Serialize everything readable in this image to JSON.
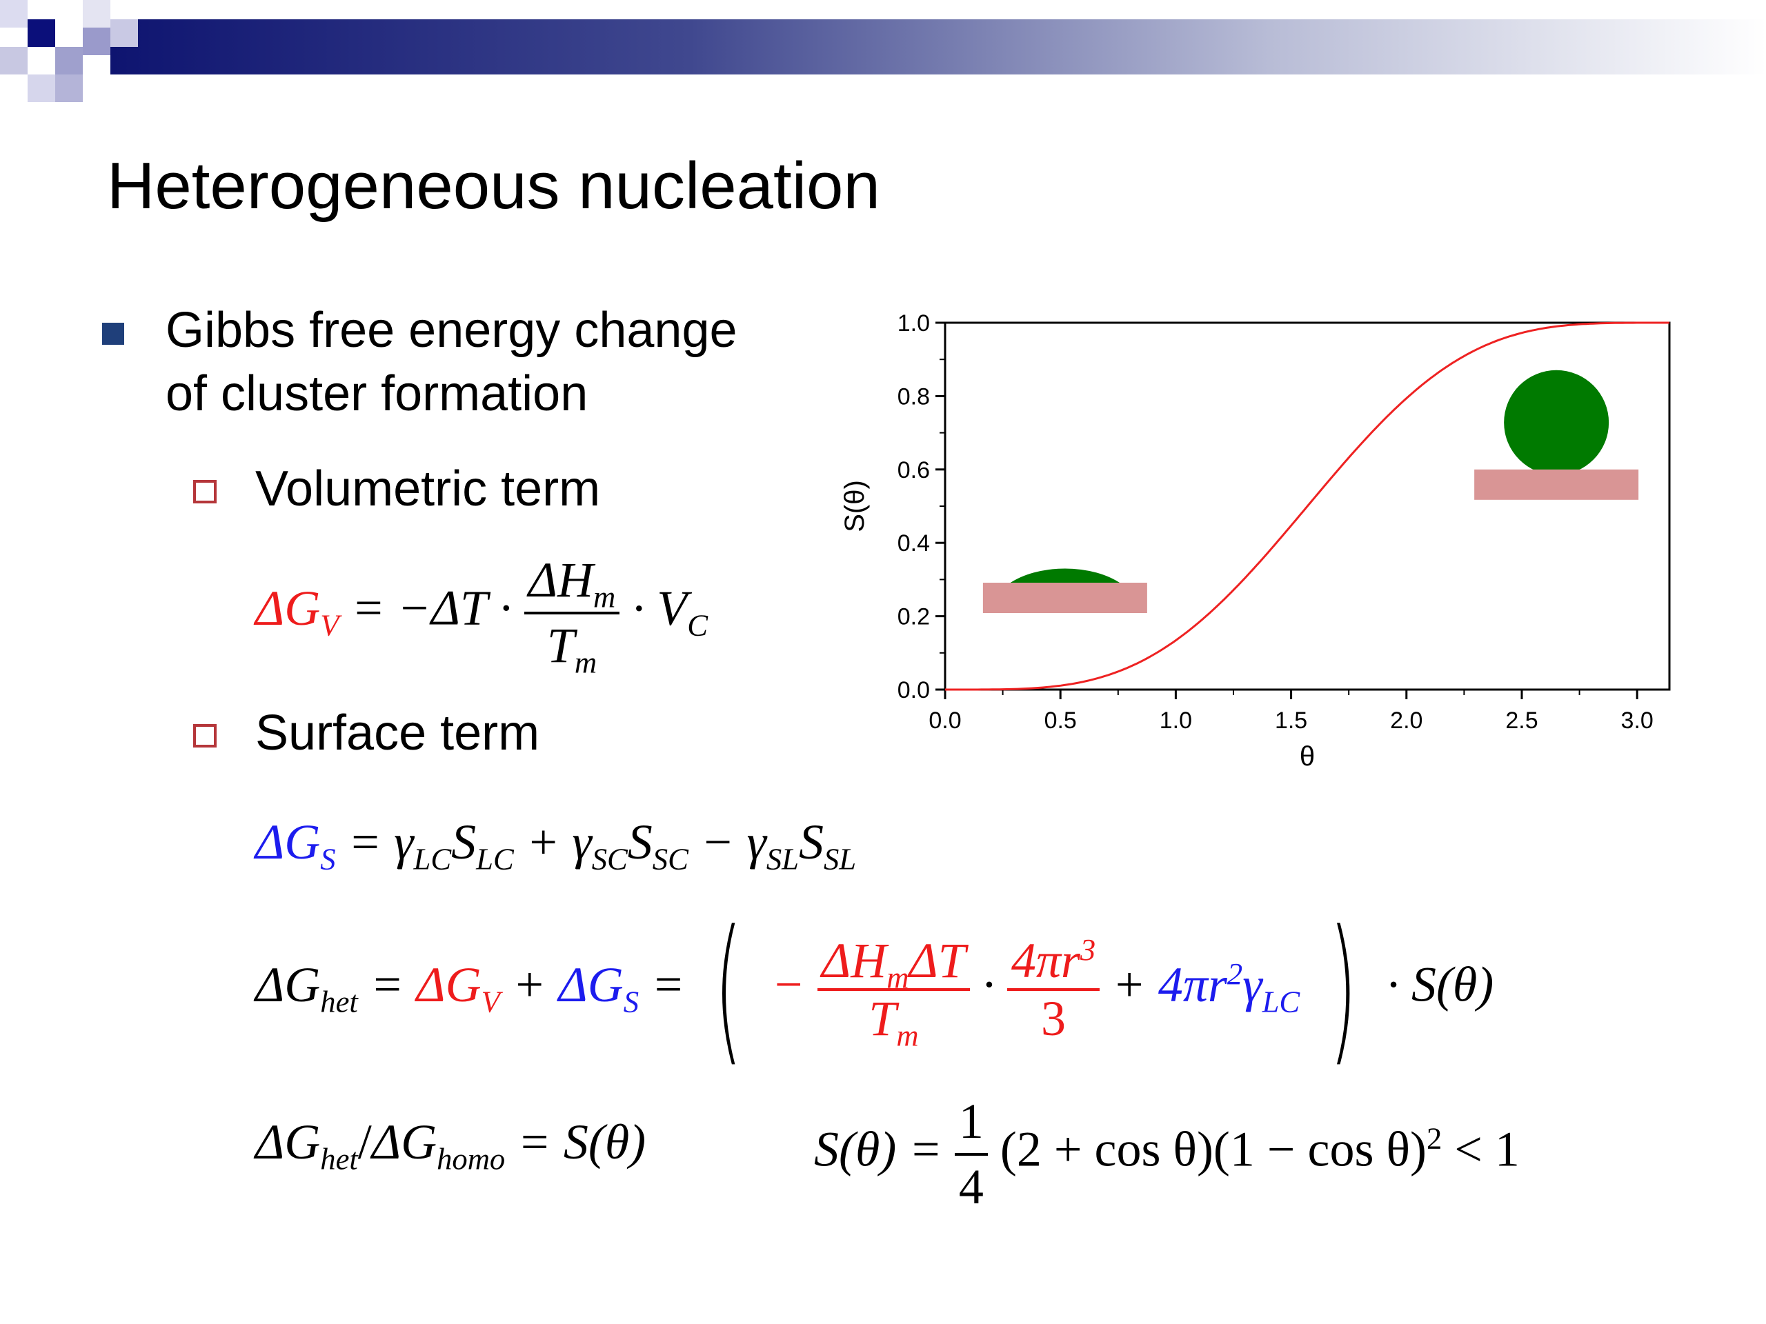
{
  "slide": {
    "title": "Heterogeneous nucleation",
    "bullet1": {
      "line1": "Gibbs free energy change",
      "line2": "of cluster formation"
    },
    "sub1": "Volumetric term",
    "sub2": "Surface term"
  },
  "equations": {
    "vol": {
      "lhs": "ΔG",
      "lhs_sub": "V",
      "eq": "= −ΔT ·",
      "num": "ΔH",
      "num_sub": "m",
      "den": "T",
      "den_sub": "m",
      "tail": "· V",
      "tail_sub": "C"
    },
    "surf": {
      "lhs": "ΔG",
      "lhs_sub": "S",
      "rhs_a": "= γ",
      "rhs_a_sub": "LC",
      "rhs_b": "S",
      "rhs_b_sub": "LC",
      "rhs_c": "+ γ",
      "rhs_c_sub": "SC",
      "rhs_d": "S",
      "rhs_d_sub": "SC",
      "rhs_e": "− γ",
      "rhs_e_sub": "SL",
      "rhs_f": "S",
      "rhs_f_sub": "SL"
    },
    "het": {
      "lhs": "ΔG",
      "lhs_sub": "het",
      "eq1": "=",
      "gv": "ΔG",
      "gv_sub": "V",
      "plus": "+",
      "gs": "ΔG",
      "gs_sub": "S",
      "eq2": "=",
      "lparen": "(",
      "minus": "−",
      "f1_num_a": "ΔH",
      "f1_num_sub": "m",
      "f1_num_b": "ΔT",
      "f1_den": "T",
      "f1_den_sub": "m",
      "dot": "·",
      "f2_num": "4πr",
      "f2_num_sup": "3",
      "f2_den": "3",
      "surf_plus": "+",
      "surf_term": "4πr",
      "surf_sup": "2",
      "surf_gamma": "γ",
      "surf_gamma_sub": "LC",
      "rparen": ")",
      "tail": "· S(θ)"
    },
    "ratio": {
      "a": "ΔG",
      "a_sub": "het",
      "slash": "/",
      "b": "ΔG",
      "b_sub": "homo",
      "rhs": "= S(θ)"
    },
    "stheta": {
      "lhs": "S(θ) =",
      "num": "1",
      "den": "4",
      "body": "(2 + cos θ)(1 − cos θ)",
      "sup": "2",
      "tail": "< 1"
    }
  },
  "chart_data": {
    "type": "line",
    "xlabel": "θ",
    "ylabel": "S(θ)",
    "xlim": [
      0,
      3.14
    ],
    "ylim": [
      0,
      1.0
    ],
    "xticks": [
      "0.0",
      "0.5",
      "1.0",
      "1.5",
      "2.0",
      "2.5",
      "3.0"
    ],
    "yticks": [
      "0.0",
      "0.2",
      "0.4",
      "0.6",
      "0.8",
      "1.0"
    ],
    "x": [
      0.0,
      0.25,
      0.5,
      0.75,
      1.0,
      1.25,
      1.5,
      1.75,
      2.0,
      2.25,
      2.5,
      2.75,
      3.0,
      3.14
    ],
    "y": [
      0.0,
      0.0006,
      0.0096,
      0.046,
      0.13,
      0.27,
      0.45,
      0.63,
      0.79,
      0.91,
      0.97,
      0.996,
      1.0,
      1.0
    ],
    "line_color": "#ee2222",
    "grid": false,
    "insets": [
      {
        "x": 0.52,
        "y": 0.25,
        "kind": "small-cap"
      },
      {
        "x": 2.65,
        "y": 0.6,
        "kind": "sphere"
      }
    ],
    "inset_colors": {
      "droplet": "#007a00",
      "substrate": "#d99595"
    }
  }
}
